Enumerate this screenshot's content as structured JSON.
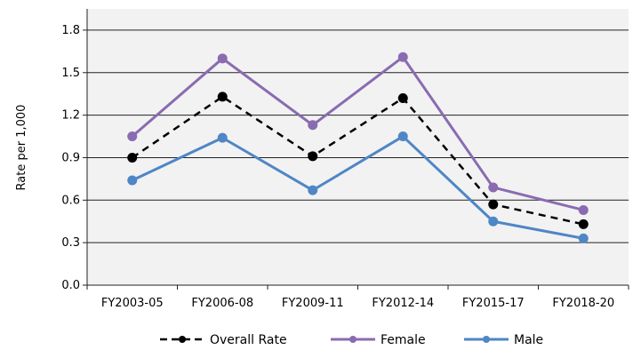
{
  "chart_data": {
    "type": "line",
    "categories": [
      "FY2003-05",
      "FY2006-08",
      "FY2009-11",
      "FY2012-14",
      "FY2015-17",
      "FY2018-20"
    ],
    "ylabel": "Rate per 1,000",
    "ylim": [
      0,
      1.95
    ],
    "yticks": [
      "0.0",
      "0.3",
      "0.6",
      "0.9",
      "1.2",
      "1.5",
      "1.8"
    ],
    "grid": true,
    "legend_position": "bottom",
    "series": [
      {
        "name": "Overall Rate",
        "color": "#000000",
        "dashed": true,
        "values": [
          0.9,
          1.33,
          0.91,
          1.32,
          0.57,
          0.43
        ]
      },
      {
        "name": "Female",
        "color": "#8a6bb1",
        "dashed": false,
        "values": [
          1.05,
          1.6,
          1.13,
          1.61,
          0.69,
          0.53
        ]
      },
      {
        "name": "Male",
        "color": "#4f86c6",
        "dashed": false,
        "values": [
          0.74,
          1.04,
          0.67,
          1.05,
          0.45,
          0.33
        ]
      }
    ]
  }
}
